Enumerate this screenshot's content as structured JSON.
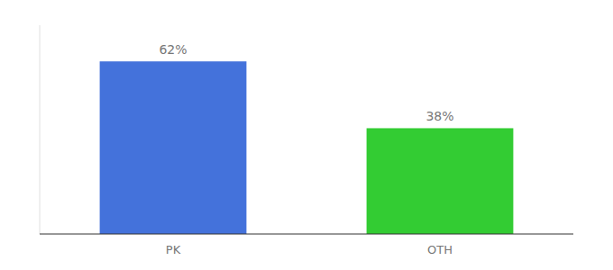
{
  "chart_data": {
    "type": "bar",
    "categories": [
      "PK",
      "OTH"
    ],
    "values": [
      62,
      38
    ],
    "value_labels": [
      "62%",
      "38%"
    ],
    "colors": [
      "#4472db",
      "#33cc33"
    ],
    "ylim": [
      0,
      75
    ],
    "data_labels": true,
    "tick_labels": "x",
    "grid": false
  }
}
